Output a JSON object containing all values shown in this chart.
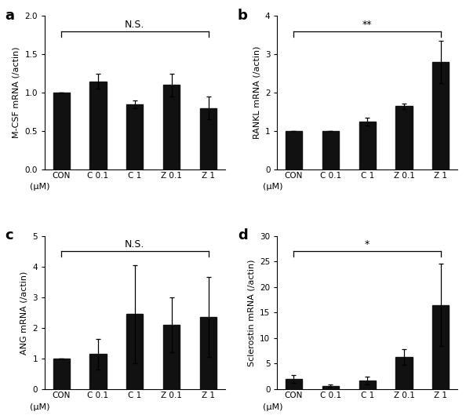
{
  "panels": [
    {
      "label": "a",
      "ylabel": "M-CSF mRNA (/actin)",
      "categories": [
        "CON",
        "C 0.1",
        "C 1",
        "Z 0.1",
        "Z 1"
      ],
      "values": [
        1.0,
        1.15,
        0.85,
        1.1,
        0.8
      ],
      "errors": [
        0.0,
        0.1,
        0.05,
        0.15,
        0.15
      ],
      "ylim": [
        0,
        2
      ],
      "yticks": [
        0,
        0.5,
        1.0,
        1.5,
        2.0
      ],
      "sig_text": "N.S.",
      "sig_symbol": false
    },
    {
      "label": "b",
      "ylabel": "RANKL mRNA (/actin)",
      "categories": [
        "CON",
        "C 0.1",
        "C 1",
        "Z 0.1",
        "Z 1"
      ],
      "values": [
        1.0,
        1.0,
        1.25,
        1.65,
        2.8
      ],
      "errors": [
        0.0,
        0.0,
        0.1,
        0.07,
        0.55
      ],
      "ylim": [
        0,
        4
      ],
      "yticks": [
        0,
        1,
        2,
        3,
        4
      ],
      "sig_text": "**",
      "sig_symbol": true
    },
    {
      "label": "c",
      "ylabel": "ANG mRNA (/actin)",
      "categories": [
        "CON",
        "C 0.1",
        "C 1",
        "Z 0.1",
        "Z 1"
      ],
      "values": [
        1.0,
        1.15,
        2.45,
        2.1,
        2.35
      ],
      "errors": [
        0.0,
        0.5,
        1.6,
        0.9,
        1.3
      ],
      "ylim": [
        0,
        5
      ],
      "yticks": [
        0,
        1,
        2,
        3,
        4,
        5
      ],
      "sig_text": "N.S.",
      "sig_symbol": false
    },
    {
      "label": "d",
      "ylabel": "Sclerostin mRNA (/actin)",
      "categories": [
        "CON",
        "C 0.1",
        "C 1",
        "Z 0.1",
        "Z 1"
      ],
      "values": [
        2.0,
        0.7,
        1.7,
        6.3,
        16.5
      ],
      "errors": [
        0.7,
        0.3,
        0.8,
        1.5,
        8.0
      ],
      "ylim": [
        0,
        30
      ],
      "yticks": [
        0,
        5,
        10,
        15,
        20,
        25,
        30
      ],
      "sig_text": "*",
      "sig_symbol": true
    }
  ],
  "bar_color": "#111111",
  "bar_width": 0.45,
  "xlabel_text": "(μM)",
  "background_color": "#ffffff",
  "tick_fontsize": 7.5,
  "ylabel_fontsize": 8.0,
  "xlabel_fontsize": 8.0,
  "panel_label_fontsize": 13,
  "sig_fontsize": 9,
  "bracket_linewidth": 0.9
}
